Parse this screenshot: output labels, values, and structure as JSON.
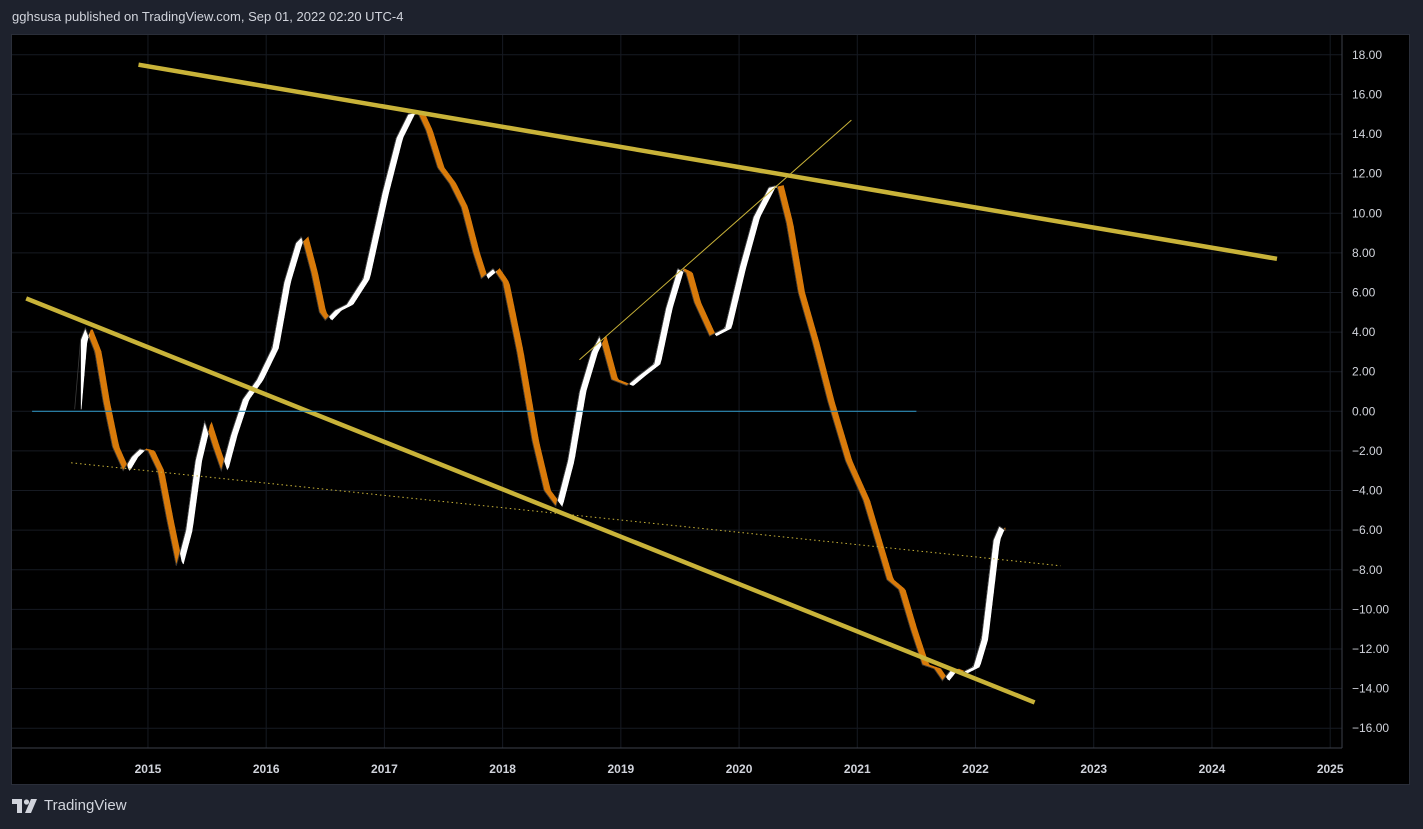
{
  "header": {
    "publish_text": "gghsusa published on TradingView.com, Sep 01, 2022 02:20 UTC-4"
  },
  "footer": {
    "brand": "TradingView",
    "logo_icon": "tradingview-logo-icon"
  },
  "colors": {
    "background": "#000000",
    "frame": "#1e222d",
    "rising_fill": "#ffffff",
    "falling_fill": "#d97b0b",
    "channel_line": "#c9b339",
    "zero_line": "#2e8bb5",
    "text": "#d1d4dc"
  },
  "chart_data": {
    "type": "area",
    "title": "",
    "xlabel": "",
    "ylabel": "",
    "x_ticks": [
      "2015",
      "2016",
      "2017",
      "2018",
      "2019",
      "2020",
      "2021",
      "2022",
      "2023",
      "2024",
      "2025"
    ],
    "y_ticks": [
      "18.00",
      "16.00",
      "14.00",
      "12.00",
      "10.00",
      "8.00",
      "6.00",
      "4.00",
      "2.00",
      "0.00",
      "−2.00",
      "−4.00",
      "−6.00",
      "−8.00",
      "−10.00",
      "−12.00",
      "−14.00",
      "−16.00"
    ],
    "xlim": [
      2014.35,
      2025.6
    ],
    "ylim": [
      -17,
      19
    ],
    "grid": true,
    "series": [
      {
        "points": [
          [
            2014.88,
            0.1
          ],
          [
            2014.93,
            3.6
          ],
          [
            2014.97,
            4.2
          ],
          [
            2015.05,
            3.0
          ],
          [
            2015.12,
            0.5
          ],
          [
            2015.2,
            -1.8
          ],
          [
            2015.29,
            -3.0
          ],
          [
            2015.36,
            -2.3
          ],
          [
            2015.43,
            -1.9
          ],
          [
            2015.5,
            -2.0
          ],
          [
            2015.58,
            -3.0
          ],
          [
            2015.66,
            -5.5
          ],
          [
            2015.74,
            -7.8
          ],
          [
            2015.82,
            -6.0
          ],
          [
            2015.9,
            -2.5
          ],
          [
            2015.98,
            -0.5
          ],
          [
            2016.05,
            -1.8
          ],
          [
            2016.12,
            -3.0
          ],
          [
            2016.2,
            -1.2
          ],
          [
            2016.3,
            0.6
          ],
          [
            2016.42,
            1.6
          ],
          [
            2016.55,
            3.2
          ],
          [
            2016.65,
            6.5
          ],
          [
            2016.75,
            8.5
          ],
          [
            2016.8,
            8.8
          ],
          [
            2016.88,
            7.0
          ],
          [
            2016.95,
            5.0
          ],
          [
            2017.0,
            4.6
          ],
          [
            2017.08,
            5.1
          ],
          [
            2017.18,
            5.4
          ],
          [
            2017.32,
            6.7
          ],
          [
            2017.48,
            11.0
          ],
          [
            2017.6,
            13.8
          ],
          [
            2017.7,
            15.0
          ],
          [
            2017.78,
            15.1
          ],
          [
            2017.85,
            14.2
          ],
          [
            2017.95,
            12.3
          ],
          [
            2018.05,
            11.5
          ],
          [
            2018.15,
            10.3
          ],
          [
            2018.25,
            8.0
          ],
          [
            2018.32,
            6.7
          ],
          [
            2018.42,
            7.2
          ],
          [
            2018.5,
            6.5
          ],
          [
            2018.62,
            3.0
          ],
          [
            2018.75,
            -1.5
          ],
          [
            2018.85,
            -4.0
          ],
          [
            2018.95,
            -4.8
          ],
          [
            2019.05,
            -2.5
          ],
          [
            2019.15,
            1.0
          ],
          [
            2019.25,
            3.0
          ],
          [
            2019.32,
            3.8
          ],
          [
            2019.42,
            1.6
          ],
          [
            2019.55,
            1.3
          ],
          [
            2019.65,
            1.8
          ],
          [
            2019.78,
            2.4
          ],
          [
            2019.88,
            5.2
          ],
          [
            2019.98,
            7.2
          ],
          [
            2020.05,
            7.0
          ],
          [
            2020.12,
            5.5
          ],
          [
            2020.25,
            3.8
          ],
          [
            2020.38,
            4.2
          ],
          [
            2020.5,
            7.2
          ],
          [
            2020.62,
            9.8
          ],
          [
            2020.75,
            11.3
          ],
          [
            2020.82,
            11.4
          ],
          [
            2020.9,
            9.5
          ],
          [
            2021.0,
            6.0
          ],
          [
            2021.12,
            3.5
          ],
          [
            2021.25,
            0.5
          ],
          [
            2021.4,
            -2.5
          ],
          [
            2021.55,
            -4.5
          ],
          [
            2021.65,
            -6.5
          ],
          [
            2021.75,
            -8.5
          ],
          [
            2021.85,
            -9.0
          ],
          [
            2021.95,
            -11.0
          ],
          [
            2022.05,
            -12.8
          ],
          [
            2022.15,
            -13.0
          ],
          [
            2022.22,
            -13.6
          ],
          [
            2022.3,
            -13.0
          ],
          [
            2022.38,
            -13.2
          ],
          [
            2022.48,
            -12.9
          ],
          [
            2022.55,
            -11.5
          ],
          [
            2022.6,
            -9.0
          ],
          [
            2022.65,
            -6.5
          ],
          [
            2022.7,
            -5.8
          ],
          [
            2022.75,
            -6.0
          ]
        ]
      }
    ],
    "annotations": [
      {
        "kind": "trend-line",
        "style": "solid-thick",
        "from": [
          2015.42,
          17.5
        ],
        "to": [
          2025.05,
          7.7
        ]
      },
      {
        "kind": "trend-line",
        "style": "solid-thick",
        "from": [
          2014.47,
          5.7
        ],
        "to": [
          2023.0,
          -14.7
        ]
      },
      {
        "kind": "trend-line",
        "style": "solid-thin",
        "from": [
          2019.15,
          2.6
        ],
        "to": [
          2021.45,
          14.7
        ]
      },
      {
        "kind": "trend-line",
        "style": "dotted",
        "from": [
          2014.85,
          -2.6
        ],
        "to": [
          2023.22,
          -7.8
        ]
      },
      {
        "kind": "horizontal-line",
        "style": "solid-thin",
        "y": 0.0,
        "x_from": [
          2014.52
        ],
        "x_to": [
          2022.0
        ]
      }
    ]
  }
}
